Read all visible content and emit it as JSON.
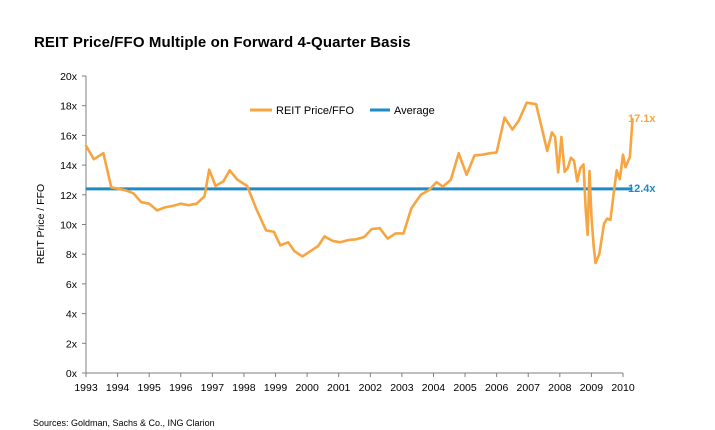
{
  "chart_data": {
    "type": "line",
    "title": "REIT Price/FFO Multiple on Forward 4-Quarter Basis",
    "xlabel": "",
    "ylabel": "REIT Price / FFO",
    "xlim": [
      1993,
      2010
    ],
    "ylim": [
      0,
      20
    ],
    "x_ticks": [
      1993,
      1994,
      1995,
      1996,
      1997,
      1998,
      1999,
      2000,
      2001,
      2002,
      2003,
      2004,
      2005,
      2006,
      2007,
      2008,
      2009,
      2010
    ],
    "y_ticks": [
      0,
      2,
      4,
      6,
      8,
      10,
      12,
      14,
      16,
      18,
      20
    ],
    "y_tick_labels": [
      "0x",
      "2x",
      "4x",
      "6x",
      "8x",
      "10x",
      "12x",
      "14x",
      "16x",
      "18x",
      "20x"
    ],
    "grid": false,
    "legend_position": "top-center",
    "series": [
      {
        "name": "REIT Price/FFO",
        "color": "#F7A541",
        "end_label": "17.1x",
        "points": [
          [
            1993.0,
            15.3
          ],
          [
            1993.25,
            14.4
          ],
          [
            1993.55,
            14.8
          ],
          [
            1993.8,
            12.5
          ],
          [
            1994.25,
            12.3
          ],
          [
            1994.5,
            12.1
          ],
          [
            1994.75,
            11.5
          ],
          [
            1995.0,
            11.4
          ],
          [
            1995.25,
            10.95
          ],
          [
            1995.5,
            11.15
          ],
          [
            1995.75,
            11.25
          ],
          [
            1996.0,
            11.4
          ],
          [
            1996.25,
            11.3
          ],
          [
            1996.5,
            11.4
          ],
          [
            1996.75,
            11.9
          ],
          [
            1996.9,
            13.7
          ],
          [
            1997.1,
            12.6
          ],
          [
            1997.35,
            12.9
          ],
          [
            1997.55,
            13.65
          ],
          [
            1997.8,
            13.0
          ],
          [
            1998.1,
            12.6
          ],
          [
            1998.4,
            11.0
          ],
          [
            1998.7,
            9.6
          ],
          [
            1998.95,
            9.5
          ],
          [
            1999.15,
            8.6
          ],
          [
            1999.4,
            8.8
          ],
          [
            1999.6,
            8.2
          ],
          [
            1999.85,
            7.85
          ],
          [
            2000.1,
            8.2
          ],
          [
            2000.35,
            8.55
          ],
          [
            2000.55,
            9.2
          ],
          [
            2000.8,
            8.9
          ],
          [
            2001.05,
            8.8
          ],
          [
            2001.3,
            8.95
          ],
          [
            2001.55,
            9.0
          ],
          [
            2001.8,
            9.15
          ],
          [
            2002.05,
            9.7
          ],
          [
            2002.3,
            9.75
          ],
          [
            2002.55,
            9.05
          ],
          [
            2002.8,
            9.4
          ],
          [
            2003.05,
            9.4
          ],
          [
            2003.3,
            11.1
          ],
          [
            2003.6,
            12.0
          ],
          [
            2003.85,
            12.3
          ],
          [
            2004.1,
            12.85
          ],
          [
            2004.3,
            12.55
          ],
          [
            2004.55,
            13.0
          ],
          [
            2004.8,
            14.8
          ],
          [
            2005.05,
            13.35
          ],
          [
            2005.3,
            14.65
          ],
          [
            2005.55,
            14.7
          ],
          [
            2005.8,
            14.8
          ],
          [
            2006.0,
            14.85
          ],
          [
            2006.25,
            17.2
          ],
          [
            2006.5,
            16.4
          ],
          [
            2006.7,
            17.0
          ],
          [
            2006.95,
            18.2
          ],
          [
            2007.25,
            18.1
          ],
          [
            2007.45,
            16.3
          ],
          [
            2007.6,
            14.95
          ],
          [
            2007.75,
            16.2
          ],
          [
            2007.85,
            15.9
          ],
          [
            2007.95,
            13.5
          ],
          [
            2008.05,
            15.9
          ],
          [
            2008.15,
            13.55
          ],
          [
            2008.25,
            13.8
          ],
          [
            2008.35,
            14.5
          ],
          [
            2008.45,
            14.3
          ],
          [
            2008.55,
            12.9
          ],
          [
            2008.65,
            13.8
          ],
          [
            2008.75,
            14.05
          ],
          [
            2008.82,
            11.0
          ],
          [
            2008.88,
            9.3
          ],
          [
            2008.94,
            13.6
          ],
          [
            2009.0,
            10.6
          ],
          [
            2009.07,
            8.6
          ],
          [
            2009.13,
            7.4
          ],
          [
            2009.25,
            8.0
          ],
          [
            2009.4,
            10.05
          ],
          [
            2009.5,
            10.4
          ],
          [
            2009.6,
            10.3
          ],
          [
            2009.7,
            12.0
          ],
          [
            2009.8,
            13.65
          ],
          [
            2009.9,
            13.05
          ],
          [
            2010.0,
            14.7
          ],
          [
            2010.08,
            13.85
          ],
          [
            2010.15,
            14.2
          ],
          [
            2010.22,
            14.55
          ],
          [
            2010.3,
            17.1
          ]
        ]
      },
      {
        "name": "Average",
        "color": "#1F8BC6",
        "end_label": "12.4x",
        "value": 12.4,
        "x_range": [
          1993,
          2010.3
        ]
      }
    ]
  },
  "source_note": "Sources:  Goldman, Sachs & Co., ING Clarion"
}
